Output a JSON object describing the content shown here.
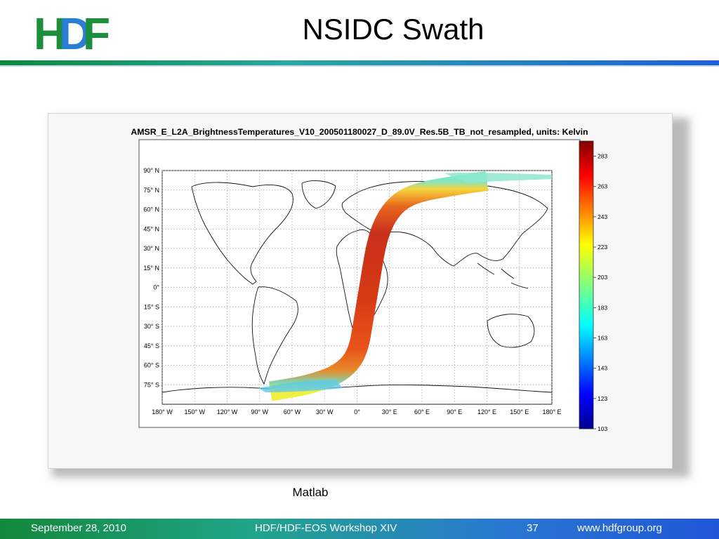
{
  "slide": {
    "title": "NSIDC Swath",
    "caption": "Matlab",
    "logo_text": "HDF"
  },
  "footer": {
    "date": "September 28, 2010",
    "event": "HDF/HDF-EOS Workshop XIV",
    "page": "37",
    "url": "www.hdfgroup.org"
  },
  "chart_data": {
    "type": "heatmap",
    "title": "AMSR_E_L2A_BrightnessTemperatures_V10_200501180027_D_89.0V_Res.5B_TB_not_resampled, units: Kelvin",
    "xlim": [
      -180,
      180
    ],
    "ylim": [
      -90,
      90
    ],
    "grid": true,
    "x_ticks": [
      -180,
      -150,
      -120,
      -90,
      -60,
      -30,
      0,
      30,
      60,
      90,
      120,
      150,
      180
    ],
    "x_tick_labels": [
      "180° W",
      "150° W",
      "120° W",
      "90° W",
      "60° W",
      "30° W",
      "0°",
      "30° E",
      "60° E",
      "90° E",
      "120° E",
      "150° E",
      "180° E"
    ],
    "y_ticks": [
      90,
      75,
      60,
      45,
      30,
      15,
      0,
      -15,
      -30,
      -45,
      -60,
      -75
    ],
    "y_tick_labels": [
      "90° N",
      "75° N",
      "60° N",
      "45° N",
      "30° N",
      "15° N",
      "0°",
      "15° S",
      "30° S",
      "45° S",
      "60° S",
      "75° S"
    ],
    "colorbar": {
      "min": 103,
      "max": 293,
      "ticks": [
        283,
        263,
        243,
        223,
        203,
        183,
        163,
        143,
        123,
        103
      ],
      "colormap": "jet"
    },
    "swath_centerline": [
      {
        "lon": 120,
        "lat": 82
      },
      {
        "lon": 95,
        "lat": 79
      },
      {
        "lon": 60,
        "lat": 74
      },
      {
        "lon": 42,
        "lat": 68
      },
      {
        "lon": 30,
        "lat": 58
      },
      {
        "lon": 22,
        "lat": 45
      },
      {
        "lon": 17,
        "lat": 30
      },
      {
        "lon": 14,
        "lat": 15
      },
      {
        "lon": 11,
        "lat": 0
      },
      {
        "lon": 8,
        "lat": -15
      },
      {
        "lon": 5,
        "lat": -30
      },
      {
        "lon": 2,
        "lat": -45
      },
      {
        "lon": -5,
        "lat": -58
      },
      {
        "lon": -20,
        "lat": -68
      },
      {
        "lon": -45,
        "lat": -75
      },
      {
        "lon": -65,
        "lat": -78
      },
      {
        "lon": -80,
        "lat": -80
      }
    ]
  }
}
